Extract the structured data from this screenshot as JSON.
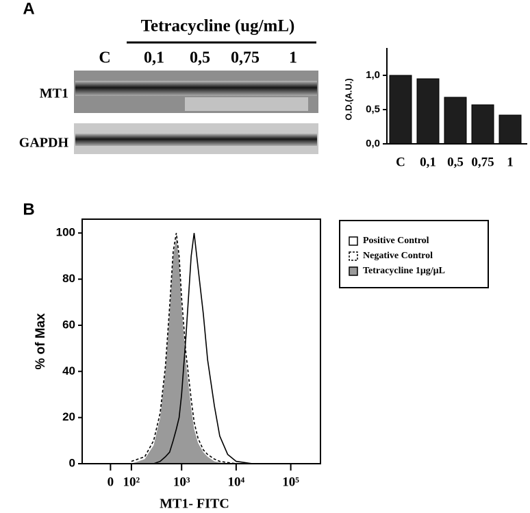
{
  "panel_labels": [
    "A",
    "B"
  ],
  "blot": {
    "title": "Tetracycline (ug/mL)",
    "lanes": [
      "C",
      "0,1",
      "0,5",
      "0,75",
      "1"
    ],
    "rows": [
      "MT1",
      "GAPDH"
    ]
  },
  "chart_data": [
    {
      "type": "bar",
      "ylabel": "O.D.(A.U.)",
      "categories": [
        "C",
        "0,1",
        "0,5",
        "0,75",
        "1"
      ],
      "values": [
        1.0,
        0.95,
        0.68,
        0.57,
        0.42
      ],
      "color": "#1e1e1e",
      "ylim": [
        0,
        1.4
      ],
      "yticks": [
        {
          "value": 0,
          "label": "0,0"
        },
        {
          "value": 0.5,
          "label": "0,5"
        },
        {
          "value": 1,
          "label": "1,0"
        }
      ]
    },
    {
      "type": "line",
      "xlabel": "MT1- FITC",
      "ylabel": "% of Max",
      "xscale": "logicle",
      "x": [
        100,
        200,
        300,
        400,
        500,
        600,
        700,
        800,
        900,
        1000,
        1200,
        1500,
        1700,
        2000,
        2500,
        3000,
        4000,
        5000,
        7000,
        10000,
        20000
      ],
      "series": [
        {
          "name": "Positive Control",
          "color": "#000000",
          "values": [
            0,
            0,
            0,
            1,
            3,
            5,
            10,
            15,
            20,
            30,
            55,
            90,
            100,
            85,
            65,
            45,
            25,
            12,
            4,
            1,
            0
          ]
        },
        {
          "name": "Negative Control",
          "color": "#000000",
          "dashed": true,
          "values": [
            1,
            3,
            10,
            22,
            42,
            68,
            92,
            100,
            90,
            72,
            48,
            28,
            18,
            11,
            6,
            4,
            2,
            1,
            0.5,
            0,
            0
          ]
        },
        {
          "name": "Tetracycline 1μg/μL",
          "color": "#9a9a9a",
          "fill": "#9a9a9a",
          "values": [
            0,
            2,
            8,
            20,
            40,
            65,
            90,
            98,
            88,
            68,
            44,
            24,
            15,
            9,
            5,
            3,
            1,
            0.5,
            0,
            0,
            0
          ]
        }
      ],
      "xlim": [
        -150,
        350000
      ],
      "xticks": [
        0,
        {
          "value": 100,
          "label": "10²"
        },
        {
          "value": 1000,
          "label": "10³"
        },
        {
          "value": 10000,
          "label": "10⁴"
        },
        {
          "value": 100000,
          "label": "10⁵"
        }
      ],
      "ylim": [
        0,
        106
      ],
      "yticks": [
        0,
        20,
        40,
        60,
        80,
        100
      ]
    }
  ]
}
